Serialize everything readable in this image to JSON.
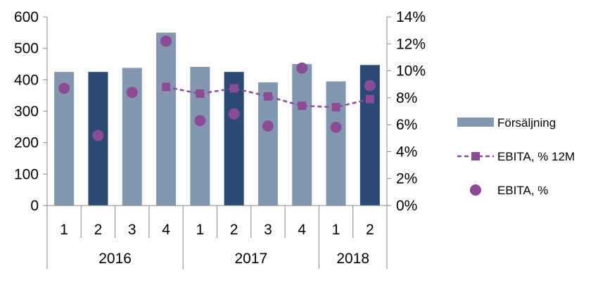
{
  "chart_data": {
    "type": "bar",
    "categories": [
      "1",
      "2",
      "3",
      "4",
      "1",
      "2",
      "3",
      "4",
      "1",
      "2"
    ],
    "groups": [
      {
        "label": "2016",
        "span": 4
      },
      {
        "label": "2017",
        "span": 4
      },
      {
        "label": "2018",
        "span": 2
      }
    ],
    "series": [
      {
        "name": "Försäljning",
        "type": "bar",
        "axis": "left",
        "values": [
          425,
          425,
          438,
          550,
          441,
          425,
          392,
          450,
          395,
          447
        ],
        "highlight": [
          false,
          true,
          false,
          false,
          false,
          true,
          false,
          false,
          false,
          true
        ]
      },
      {
        "name": "EBITA, % 12M",
        "type": "line",
        "axis": "right",
        "values": [
          null,
          null,
          null,
          8.8,
          8.3,
          8.7,
          8.1,
          7.4,
          7.3,
          7.9
        ]
      },
      {
        "name": "EBITA, %",
        "type": "scatter",
        "axis": "right",
        "values": [
          8.7,
          5.2,
          8.4,
          12.2,
          6.3,
          6.8,
          5.9,
          10.2,
          5.8,
          8.9
        ]
      }
    ],
    "yleft": {
      "ylim": [
        0,
        600
      ],
      "ticks": [
        "0",
        "100",
        "200",
        "300",
        "400",
        "500",
        "600"
      ]
    },
    "yright": {
      "ylim": [
        0,
        14
      ],
      "ticks": [
        "0%",
        "2%",
        "4%",
        "6%",
        "8%",
        "10%",
        "12%",
        "14%"
      ]
    },
    "legend_position": "right",
    "grid": false,
    "colors": {
      "bar": "#8497b0",
      "bar_highlight": "#2b4a72",
      "line": "#8b4c97",
      "dot": "#8b4c97",
      "axis": "#888888"
    }
  }
}
